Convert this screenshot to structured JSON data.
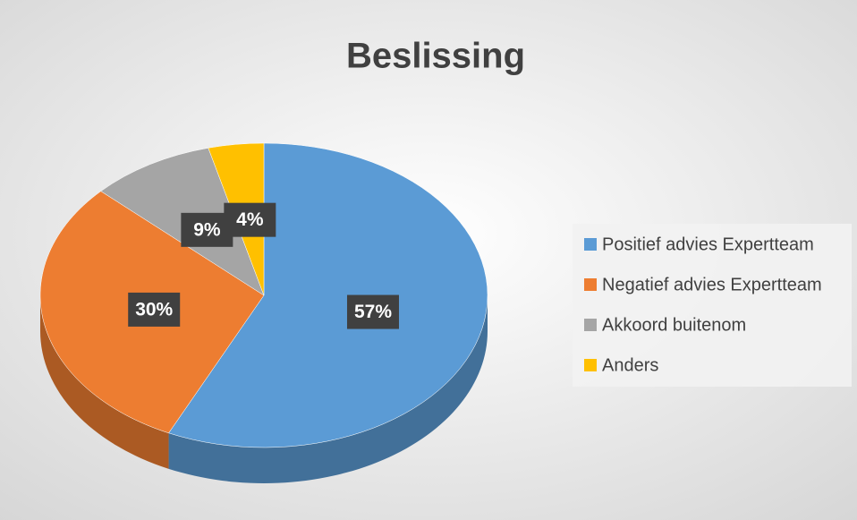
{
  "chart_data": {
    "type": "pie",
    "title": "Beslissing",
    "categories": [
      "Positief advies Expertteam",
      "Negatief advies Expertteam",
      "Akkoord buitenom",
      "Anders"
    ],
    "values": [
      57,
      30,
      9,
      4
    ],
    "value_labels": [
      "57%",
      "30%",
      "9%",
      "4%"
    ],
    "colors": [
      "#5b9bd5",
      "#ed7d31",
      "#a5a5a5",
      "#ffc000"
    ],
    "legend": "right"
  }
}
